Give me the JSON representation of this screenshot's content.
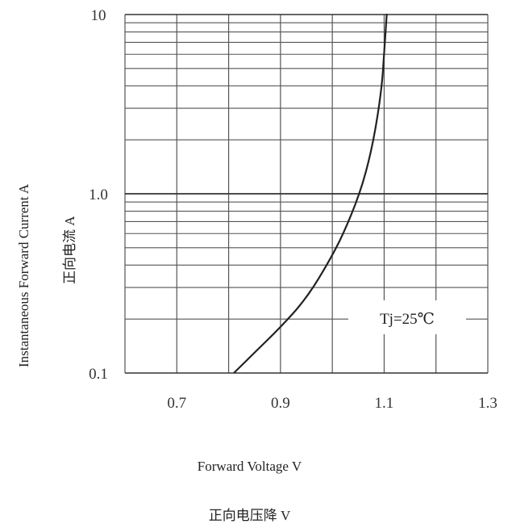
{
  "chart_data": {
    "type": "line",
    "xlabel": "Forward Voltage  V",
    "xlabel_cn": "正向电压降 V",
    "ylabel": "Instantaneous  Forward  Current   A",
    "ylabel_cn": "正向电流 A",
    "xlim": [
      0.6,
      1.3
    ],
    "ylim": [
      0.1,
      10
    ],
    "yscale": "log",
    "grid": true,
    "x_ticks": [
      {
        "value": 0.7,
        "label": "0.7"
      },
      {
        "value": 0.9,
        "label": "0.9"
      },
      {
        "value": 1.1,
        "label": "1.1"
      },
      {
        "value": 1.3,
        "label": "1.3"
      }
    ],
    "y_ticks": [
      {
        "value": 0.1,
        "label": "0.1"
      },
      {
        "value": 1.0,
        "label": "1.0"
      },
      {
        "value": 10,
        "label": "10"
      }
    ],
    "annotation": "Tj=25℃",
    "series": [
      {
        "x": [
          0.81,
          0.85,
          0.9,
          0.95,
          1.0,
          1.03,
          1.06,
          1.08,
          1.095,
          1.1,
          1.105
        ],
        "y": [
          0.1,
          0.13,
          0.18,
          0.26,
          0.45,
          0.68,
          1.15,
          2.0,
          3.8,
          6.0,
          10.0
        ]
      }
    ]
  }
}
